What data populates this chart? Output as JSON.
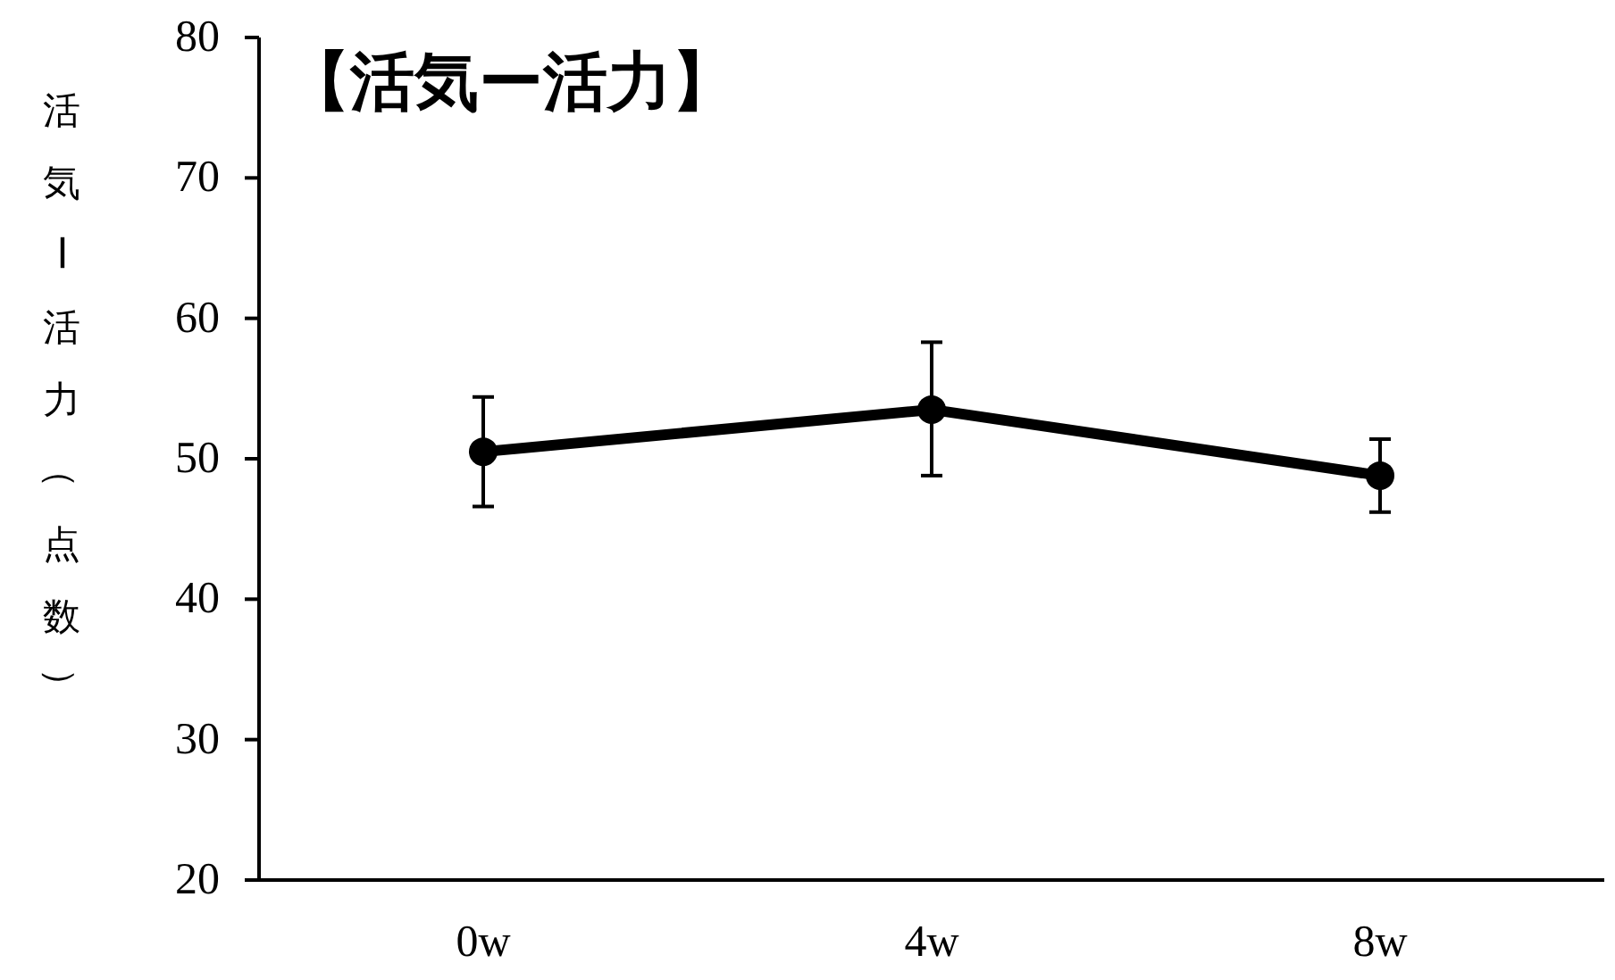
{
  "chart_data": {
    "type": "line",
    "title": "【活気ー活力】",
    "ylabel": "活気ー活力（点数）",
    "categories": [
      "0w",
      "4w",
      "8w"
    ],
    "series": [
      {
        "color": "#000000",
        "values": [
          50.5,
          53.5,
          48.8
        ],
        "errors": [
          [
            46.6,
            54.4
          ],
          [
            48.8,
            58.3
          ],
          [
            46.2,
            51.4
          ]
        ]
      }
    ],
    "ylim": [
      20,
      80
    ],
    "yticks": [
      20,
      30,
      40,
      50,
      60,
      70,
      80
    ],
    "grid": false,
    "marker": "circle",
    "line_style": "solid"
  }
}
